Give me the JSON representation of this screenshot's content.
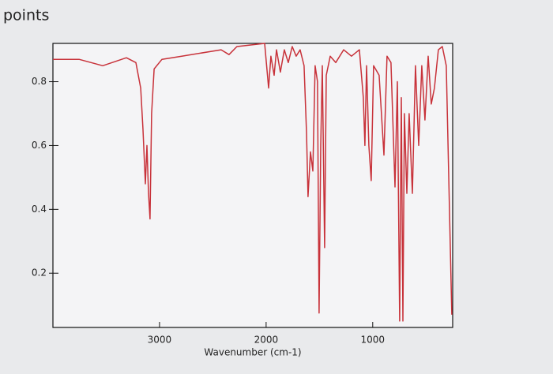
{
  "header": "points",
  "chart_data": {
    "type": "line",
    "xlabel": "Wavenumber (cm-1)",
    "x": [
      4000,
      3755,
      3533,
      3311,
      3222,
      3177,
      3155,
      3133,
      3118,
      3103,
      3089,
      3074,
      3051,
      2977,
      2792,
      2422,
      2348,
      2274,
      2014,
      1977,
      1955,
      1925,
      1903,
      1866,
      1829,
      1792,
      1755,
      1718,
      1681,
      1644,
      1621,
      1607,
      1584,
      1562,
      1540,
      1518,
      1503,
      1488,
      1473,
      1451,
      1436,
      1399,
      1347,
      1273,
      1199,
      1125,
      1088,
      1073,
      1058,
      1036,
      1014,
      992,
      940,
      895,
      866,
      829,
      791,
      769,
      747,
      732,
      717,
      703,
      680,
      658,
      628,
      599,
      569,
      540,
      510,
      480,
      451,
      421,
      384,
      347,
      310,
      258
    ],
    "series": [
      {
        "color": "#c8323a",
        "values": [
          0.87,
          0.87,
          0.85,
          0.875,
          0.86,
          0.78,
          0.65,
          0.48,
          0.6,
          0.45,
          0.37,
          0.7,
          0.84,
          0.87,
          0.88,
          0.9,
          0.885,
          0.91,
          0.92,
          0.78,
          0.88,
          0.82,
          0.9,
          0.83,
          0.9,
          0.86,
          0.91,
          0.88,
          0.9,
          0.85,
          0.64,
          0.44,
          0.58,
          0.52,
          0.85,
          0.8,
          0.075,
          0.6,
          0.85,
          0.28,
          0.82,
          0.88,
          0.86,
          0.9,
          0.88,
          0.9,
          0.75,
          0.6,
          0.85,
          0.6,
          0.49,
          0.85,
          0.82,
          0.57,
          0.88,
          0.86,
          0.47,
          0.8,
          0.05,
          0.75,
          0.05,
          0.7,
          0.45,
          0.7,
          0.45,
          0.85,
          0.6,
          0.85,
          0.68,
          0.88,
          0.73,
          0.78,
          0.9,
          0.91,
          0.85,
          0.07
        ]
      }
    ],
    "xlim": [
      4000,
      250
    ],
    "xticks": [
      3000,
      2000,
      1000
    ],
    "ylim": [
      0.03,
      0.92
    ],
    "yticks": [
      0.2,
      0.4,
      0.6,
      0.8
    ],
    "grid": false
  }
}
